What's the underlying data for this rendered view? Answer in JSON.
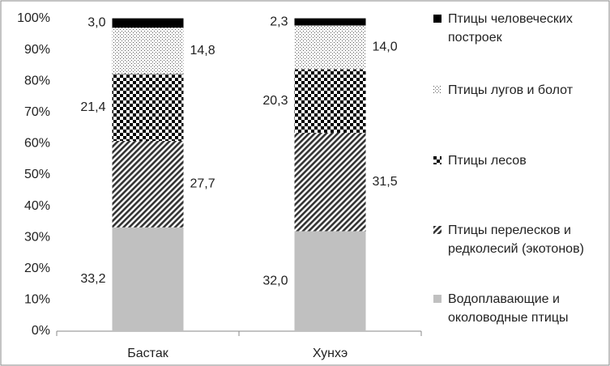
{
  "chart_data": {
    "type": "stacked_bar",
    "categories": [
      "Бастак",
      "Хунхэ"
    ],
    "series": [
      {
        "name": "Водоплавающие и околоводные птицы",
        "color": "#c0c0c0",
        "pattern": "solid",
        "values": [
          33.2,
          32.0
        ],
        "value_labels": [
          "33,2",
          "32,0"
        ]
      },
      {
        "name": "Птицы перелесков и редколесий (экотонов)",
        "color": "#333333",
        "pattern": "diagonal",
        "values": [
          27.7,
          31.5
        ],
        "value_labels": [
          "27,7",
          "31,5"
        ]
      },
      {
        "name": "Птицы лесов",
        "color": "#000000",
        "pattern": "checker",
        "values": [
          21.4,
          20.3
        ],
        "value_labels": [
          "21,4",
          "20,3"
        ]
      },
      {
        "name": "Птицы лугов и болот",
        "color": "#555555",
        "pattern": "dots",
        "values": [
          14.8,
          14.0
        ],
        "value_labels": [
          "14,8",
          "14,0"
        ]
      },
      {
        "name": "Птицы человеческих построек",
        "color": "#000000",
        "pattern": "solid",
        "values": [
          3.0,
          2.3
        ],
        "value_labels": [
          "3,0",
          "2,3"
        ]
      }
    ],
    "ylim": [
      0,
      100
    ],
    "yticks": [
      {
        "value": 0,
        "label": "0%"
      },
      {
        "value": 10,
        "label": "10%"
      },
      {
        "value": 20,
        "label": "20%"
      },
      {
        "value": 30,
        "label": "30%"
      },
      {
        "value": 40,
        "label": "40%"
      },
      {
        "value": 50,
        "label": "50%"
      },
      {
        "value": 60,
        "label": "60%"
      },
      {
        "value": 70,
        "label": "70%"
      },
      {
        "value": 80,
        "label": "80%"
      },
      {
        "value": 90,
        "label": "90%"
      },
      {
        "value": 100,
        "label": "100%"
      }
    ],
    "grid": false,
    "legend": "right"
  }
}
